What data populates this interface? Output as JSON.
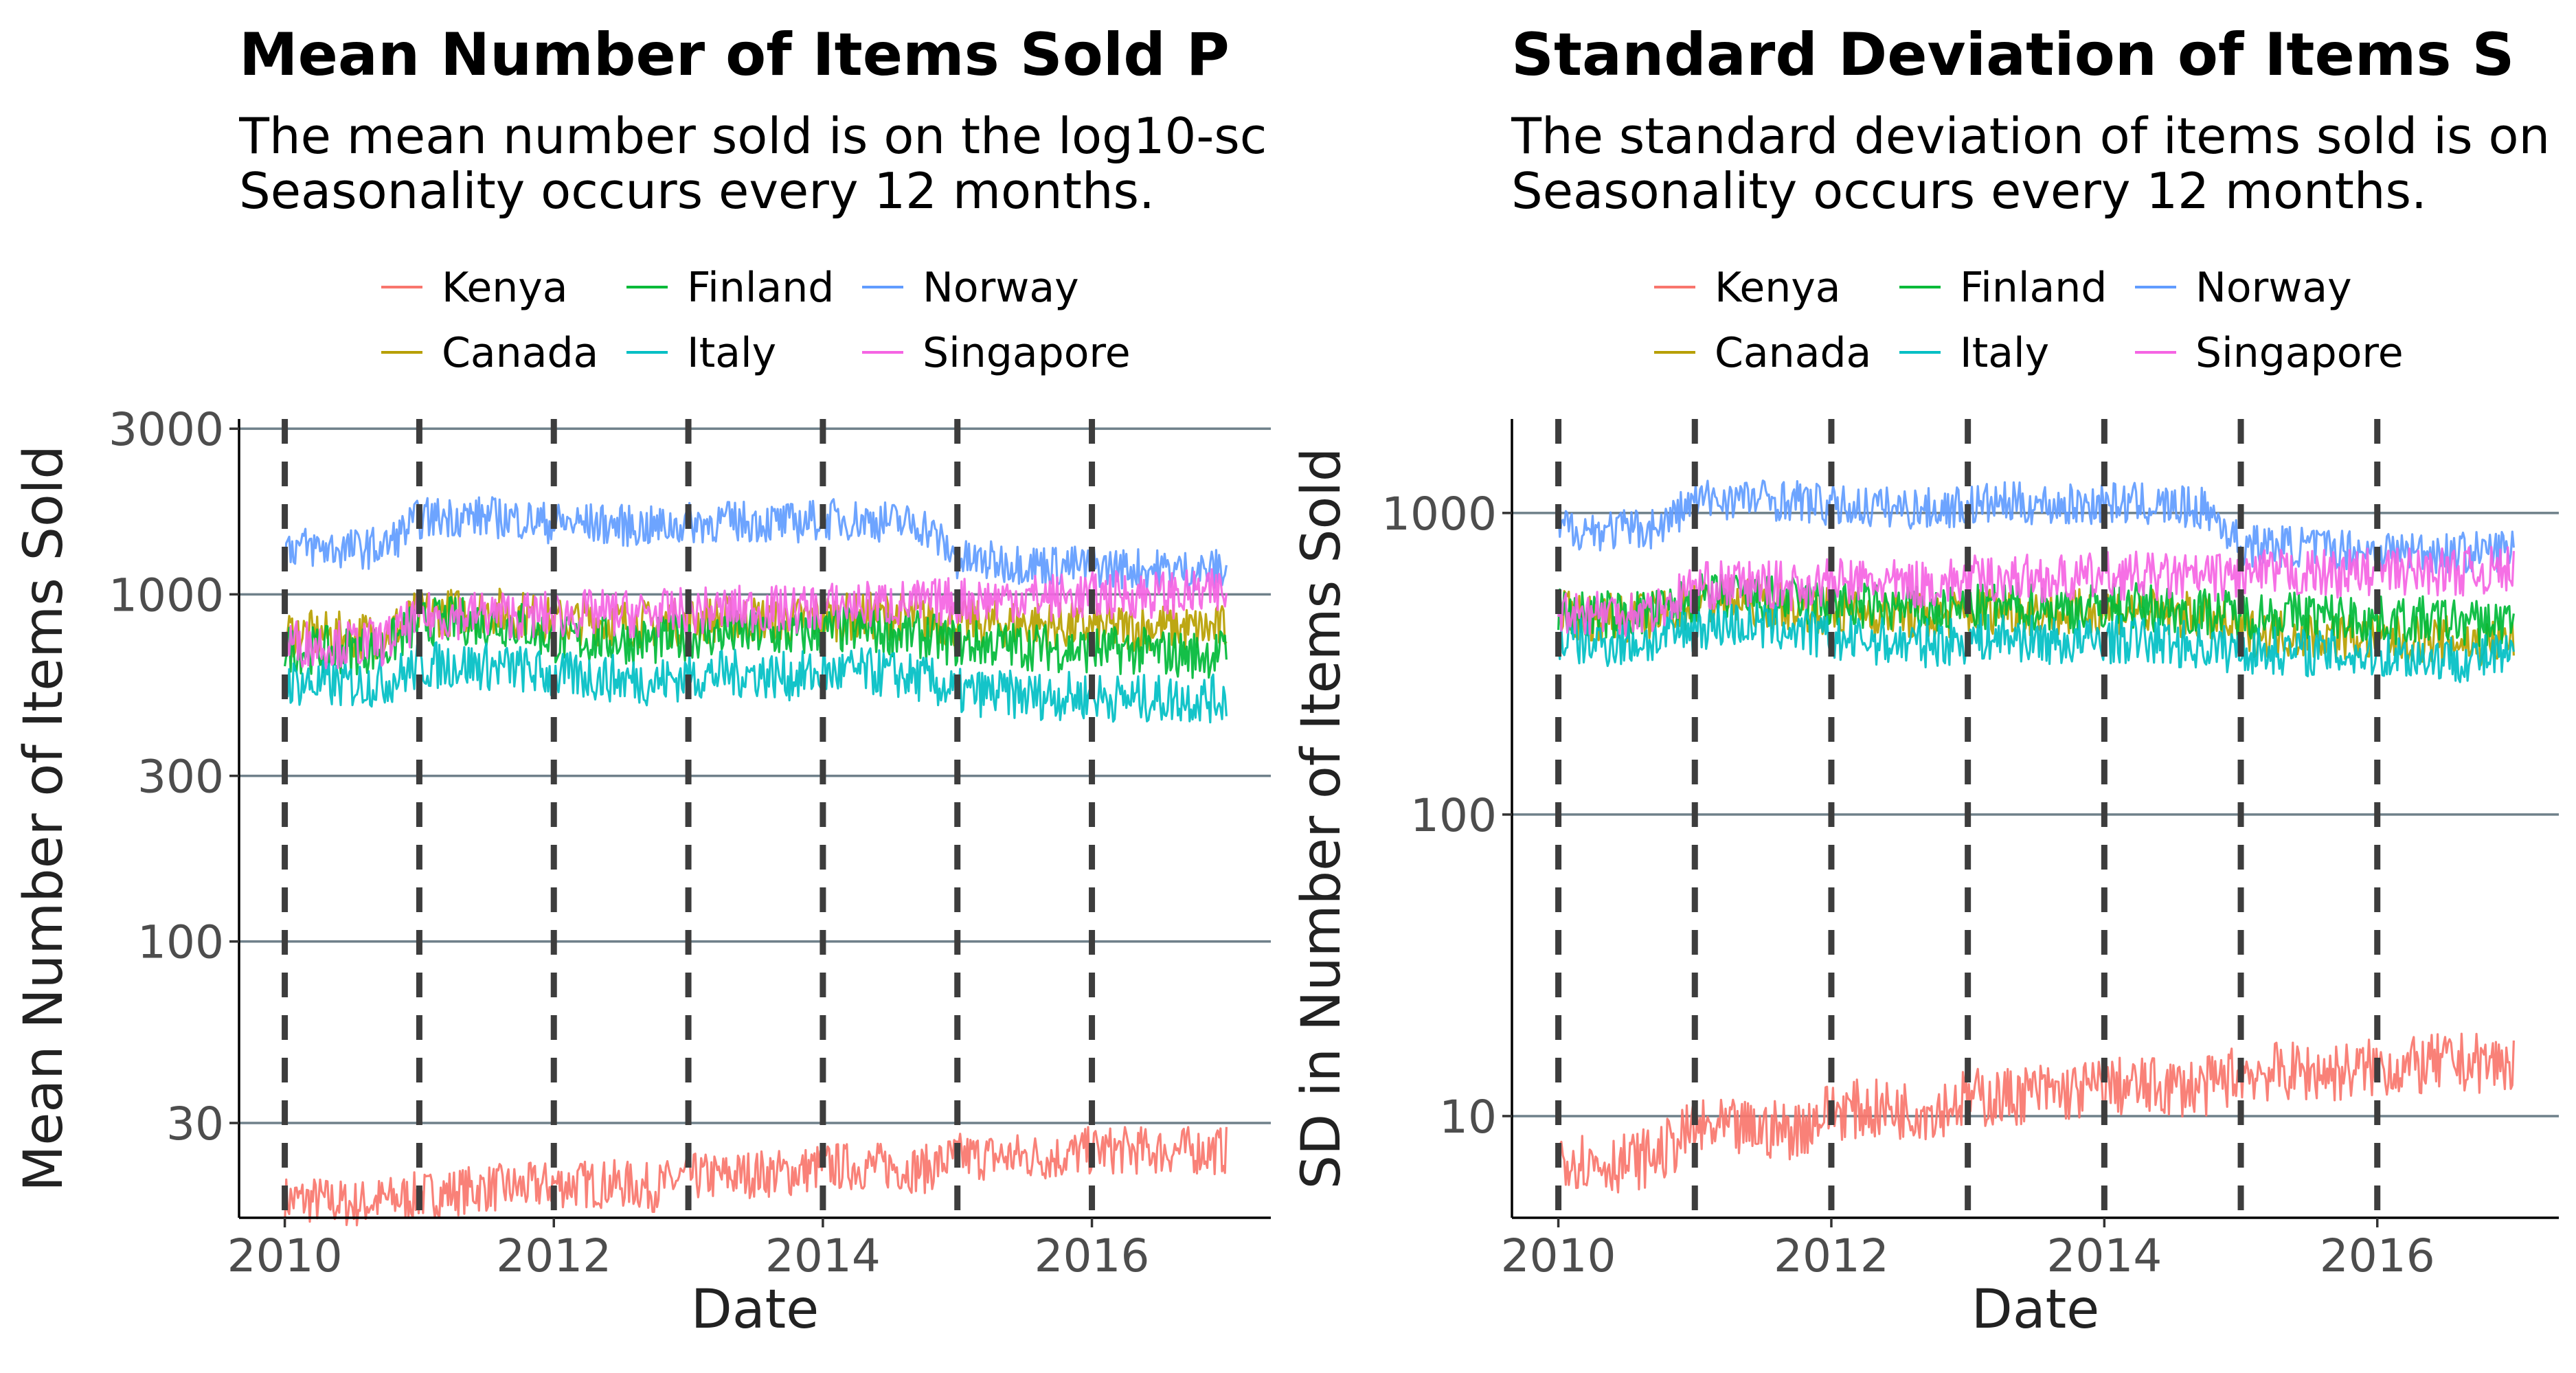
{
  "chart_data": [
    {
      "type": "line",
      "title": "Mean Number of Items Sold P",
      "subtitle": "The mean number sold is on the log10-sc\nSeasonality occurs every 12 months.",
      "xlabel": "Date",
      "ylabel": "Mean Number of Items Sold",
      "y_scale": "log10",
      "ylim": [
        16,
        3200
      ],
      "xlim": [
        2009.66,
        2017.33
      ],
      "yticks": [
        30,
        100,
        300,
        1000,
        3000
      ],
      "ytick_labels": [
        "30",
        "100",
        "300",
        "1000",
        "3000"
      ],
      "xticks": [
        2010,
        2012,
        2014,
        2016
      ],
      "xtick_labels": [
        "2010",
        "2012",
        "2014",
        "2016"
      ],
      "vlines": [
        2010,
        2011,
        2012,
        2013,
        2014,
        2015,
        2016
      ],
      "grid": "horizontal major",
      "legend_position": "top",
      "x": [
        2010.0,
        2010.25,
        2010.5,
        2010.75,
        2011.0,
        2011.25,
        2011.5,
        2011.75,
        2012.0,
        2012.25,
        2012.5,
        2012.75,
        2013.0,
        2013.25,
        2013.5,
        2013.75,
        2014.0,
        2014.25,
        2014.5,
        2014.75,
        2015.0,
        2015.25,
        2015.5,
        2015.75,
        2016.0,
        2016.25,
        2016.5,
        2016.75,
        2017.0
      ],
      "series": [
        {
          "name": "Kenya",
          "color": "#F8766D",
          "values": [
            18,
            18,
            17.5,
            18,
            18.5,
            19,
            19.5,
            19.5,
            20,
            20,
            20,
            19.5,
            21,
            21,
            21.5,
            21.5,
            22.5,
            22.5,
            22.5,
            22,
            24,
            24,
            24,
            24,
            25,
            25,
            25,
            25,
            25
          ],
          "spread": 0.07
        },
        {
          "name": "Canada",
          "color": "#B79F00",
          "values": [
            780,
            760,
            760,
            770,
            880,
            890,
            900,
            880,
            830,
            840,
            830,
            820,
            840,
            850,
            850,
            840,
            860,
            860,
            870,
            850,
            820,
            820,
            830,
            810,
            800,
            800,
            810,
            790,
            800
          ],
          "spread": 0.07
        },
        {
          "name": "Finland",
          "color": "#00BA38",
          "values": [
            700,
            690,
            690,
            700,
            830,
            840,
            830,
            820,
            740,
            740,
            740,
            730,
            760,
            770,
            770,
            760,
            780,
            790,
            780,
            760,
            720,
            720,
            710,
            700,
            690,
            690,
            680,
            670,
            680
          ],
          "spread": 0.07
        },
        {
          "name": "Italy",
          "color": "#00BFC4",
          "values": [
            560,
            550,
            550,
            560,
            620,
            630,
            620,
            610,
            580,
            580,
            570,
            560,
            580,
            590,
            590,
            580,
            590,
            600,
            590,
            570,
            520,
            520,
            510,
            510,
            510,
            500,
            500,
            500,
            500
          ],
          "spread": 0.07
        },
        {
          "name": "Norway",
          "color": "#619CFF",
          "values": [
            1380,
            1360,
            1350,
            1370,
            1650,
            1680,
            1670,
            1650,
            1600,
            1600,
            1580,
            1560,
            1600,
            1620,
            1620,
            1600,
            1650,
            1640,
            1620,
            1580,
            1250,
            1240,
            1230,
            1210,
            1200,
            1190,
            1180,
            1170,
            1180
          ],
          "spread": 0.06
        },
        {
          "name": "Singapore",
          "color": "#F564E3",
          "values": [
            730,
            720,
            720,
            730,
            860,
            870,
            880,
            870,
            870,
            880,
            880,
            880,
            890,
            900,
            910,
            900,
            920,
            930,
            940,
            940,
            960,
            970,
            980,
            980,
            990,
            1000,
            1000,
            1000,
            1010
          ],
          "spread": 0.07
        }
      ]
    },
    {
      "type": "line",
      "title": "Standard Deviation of Items S",
      "subtitle": "The standard deviation of items sold is on\nSeasonality occurs every 12 months.",
      "xlabel": "Date",
      "ylabel": "SD in Number of Items Sold",
      "y_scale": "log10",
      "ylim": [
        4.6,
        2050
      ],
      "xlim": [
        2009.66,
        2017.33
      ],
      "yticks": [
        10,
        100,
        1000
      ],
      "ytick_labels": [
        "10",
        "100",
        "1000"
      ],
      "xticks": [
        2010,
        2012,
        2014,
        2016
      ],
      "xtick_labels": [
        "2010",
        "2012",
        "2014",
        "2016"
      ],
      "vlines": [
        2010,
        2011,
        2012,
        2013,
        2014,
        2015,
        2016
      ],
      "grid": "horizontal major",
      "legend_position": "top",
      "x": [
        2010.0,
        2010.25,
        2010.5,
        2010.75,
        2011.0,
        2011.25,
        2011.5,
        2011.75,
        2012.0,
        2012.25,
        2012.5,
        2012.75,
        2013.0,
        2013.25,
        2013.5,
        2013.75,
        2014.0,
        2014.25,
        2014.5,
        2014.75,
        2015.0,
        2015.25,
        2015.5,
        2015.75,
        2016.0,
        2016.25,
        2016.5,
        2016.75,
        2017.0
      ],
      "series": [
        {
          "name": "Kenya",
          "color": "#F8766D",
          "values": [
            7.5,
            7,
            7,
            7.5,
            9,
            9,
            9,
            9,
            10.5,
            10.5,
            10.5,
            10.5,
            11.5,
            11.5,
            12,
            12,
            12.5,
            12.5,
            12.5,
            12.5,
            14,
            14,
            14,
            14,
            14.5,
            14.5,
            15,
            15,
            15
          ],
          "spread": 0.1
        },
        {
          "name": "Canada",
          "color": "#B79F00",
          "values": [
            460,
            450,
            450,
            460,
            500,
            510,
            500,
            490,
            470,
            470,
            460,
            450,
            470,
            480,
            470,
            460,
            480,
            470,
            460,
            450,
            400,
            400,
            395,
            390,
            380,
            380,
            380,
            370,
            380
          ],
          "spread": 0.08
        },
        {
          "name": "Finland",
          "color": "#00BA38",
          "values": [
            470,
            460,
            460,
            470,
            520,
            530,
            520,
            510,
            490,
            490,
            480,
            470,
            480,
            490,
            490,
            480,
            490,
            490,
            480,
            470,
            460,
            460,
            460,
            450,
            440,
            440,
            440,
            430,
            440
          ],
          "spread": 0.08
        },
        {
          "name": "Italy",
          "color": "#00BFC4",
          "values": [
            380,
            370,
            370,
            380,
            420,
            430,
            420,
            410,
            380,
            380,
            370,
            370,
            380,
            390,
            380,
            370,
            380,
            380,
            370,
            360,
            350,
            350,
            345,
            340,
            340,
            335,
            330,
            330,
            335
          ],
          "spread": 0.08
        },
        {
          "name": "Norway",
          "color": "#619CFF",
          "values": [
            900,
            880,
            880,
            900,
            1100,
            1120,
            1110,
            1100,
            1050,
            1050,
            1040,
            1030,
            1060,
            1080,
            1070,
            1060,
            1080,
            1070,
            1050,
            1030,
            780,
            780,
            770,
            760,
            750,
            750,
            740,
            740,
            760
          ],
          "spread": 0.07
        },
        {
          "name": "Singapore",
          "color": "#F564E3",
          "values": [
            480,
            470,
            470,
            480,
            570,
            580,
            580,
            570,
            590,
            590,
            580,
            580,
            600,
            610,
            610,
            600,
            620,
            620,
            610,
            610,
            620,
            630,
            630,
            630,
            640,
            640,
            640,
            640,
            650
          ],
          "spread": 0.08
        }
      ]
    }
  ]
}
